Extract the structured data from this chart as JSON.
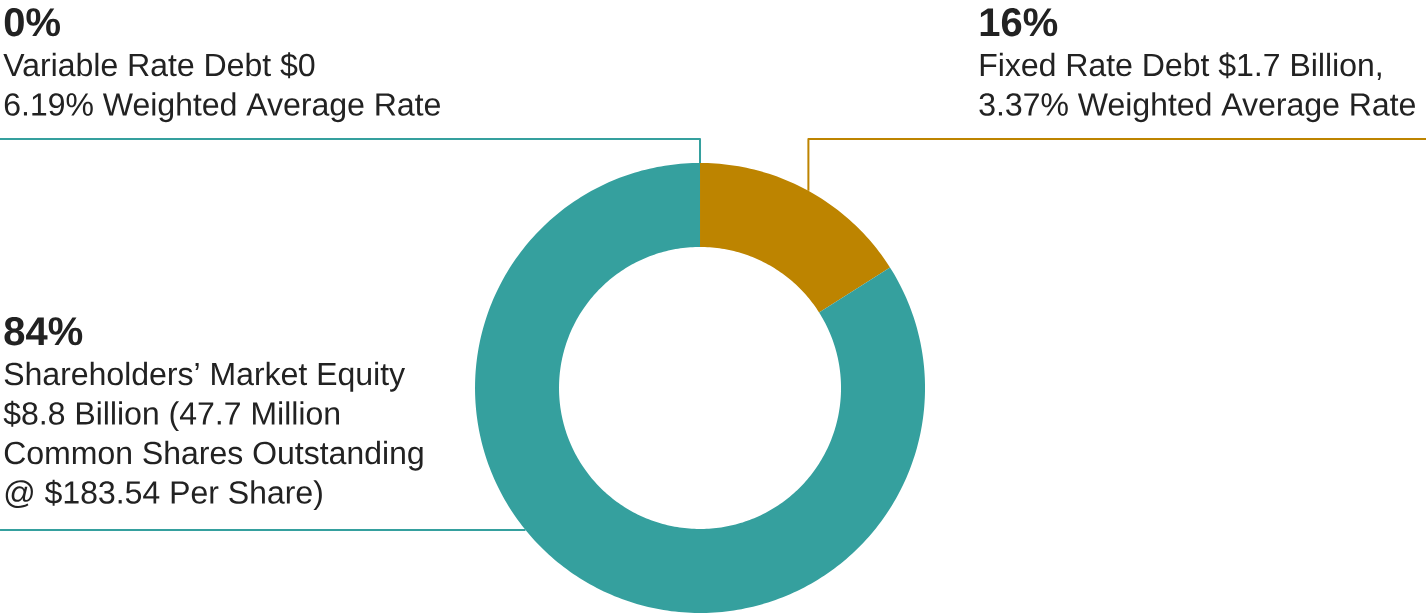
{
  "chart_data": {
    "type": "donut",
    "categories": [
      "Variable Rate Debt $0 6.19% Weighted Average Rate",
      "Fixed Rate Debt $1.7 Billion, 3.37% Weighted Average Rate",
      "Shareholders’ Market Equity $8.8 Billion (47.7 Million Common Shares Outstanding @ $183.54 Per Share)"
    ],
    "values": [
      0,
      16,
      84
    ],
    "colors": [
      "#35a09e",
      "#bd8400",
      "#35a09e"
    ],
    "value_labels": [
      "0%",
      "16%",
      "84%"
    ]
  }
}
